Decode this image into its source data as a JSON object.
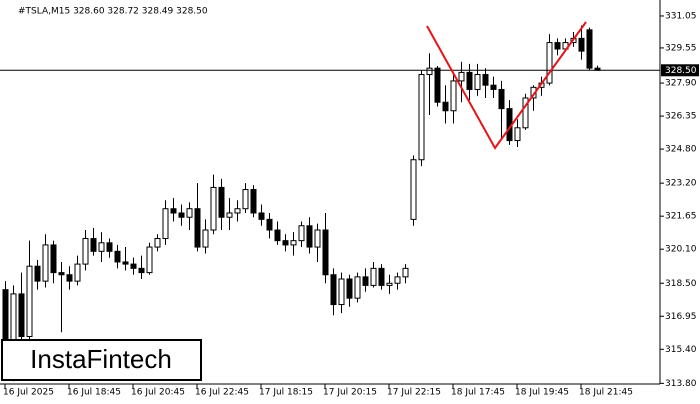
{
  "chart_data": {
    "type": "candlestick",
    "title": "#TSLA,M15  328.60 328.72 328.49 328.50",
    "logo": "InstaFintech",
    "categories": [
      "16 Jul 2025",
      null,
      null,
      null,
      null,
      null,
      null,
      null,
      "16 Jul 18:45",
      null,
      null,
      null,
      null,
      null,
      null,
      null,
      "16 Jul 20:45",
      null,
      null,
      null,
      null,
      null,
      null,
      null,
      "16 Jul 22:45",
      null,
      null,
      null,
      null,
      null,
      null,
      null,
      "17 Jul 18:15",
      null,
      null,
      null,
      null,
      null,
      null,
      null,
      "17 Jul 20:15",
      null,
      null,
      null,
      null,
      null,
      null,
      null,
      "17 Jul 22:15",
      null,
      null,
      null,
      null,
      null,
      null,
      null,
      "18 Jul 17:45",
      null,
      null,
      null,
      null,
      null,
      null,
      null,
      "18 Jul 19:45",
      null,
      null,
      null,
      null,
      null,
      null,
      null,
      "18 Jul 21:45",
      null,
      null
    ],
    "open": [
      318.2,
      315.5,
      318.0,
      316.0,
      319.3,
      318.6,
      320.3,
      319.0,
      318.9,
      318.6,
      319.4,
      320.6,
      320.0,
      320.4,
      320.0,
      319.5,
      319.4,
      319.2,
      319.0,
      320.2,
      320.6,
      322.0,
      321.8,
      321.6,
      322.0,
      320.2,
      321.0,
      323.0,
      321.6,
      321.8,
      322.0,
      322.9,
      321.8,
      321.5,
      321.0,
      320.5,
      320.3,
      320.5,
      321.2,
      320.2,
      321.0,
      318.9,
      317.5,
      318.7,
      317.8,
      318.8,
      318.4,
      319.2,
      318.4,
      318.5,
      318.8,
      321.5,
      324.3,
      328.3,
      328.6,
      327.0,
      326.6,
      328.0,
      328.4,
      327.6,
      328.3,
      327.8,
      327.6,
      326.7,
      325.2,
      325.8,
      327.2,
      327.7,
      327.9,
      329.8,
      329.5,
      329.8,
      330.0,
      330.4,
      328.6
    ],
    "high": [
      318.6,
      318.4,
      319.0,
      320.5,
      319.6,
      320.8,
      320.5,
      319.5,
      319.3,
      319.8,
      321.0,
      321.1,
      320.9,
      320.6,
      320.3,
      320.2,
      319.7,
      319.8,
      320.4,
      320.8,
      322.4,
      322.5,
      322.2,
      322.3,
      323.2,
      321.5,
      323.6,
      323.4,
      322.5,
      322.4,
      323.2,
      323.1,
      322.2,
      321.8,
      321.4,
      320.8,
      320.9,
      321.4,
      321.6,
      321.3,
      321.8,
      319.2,
      319.0,
      318.9,
      319.0,
      319.2,
      319.5,
      319.4,
      318.9,
      319.0,
      319.4,
      324.5,
      328.5,
      329.3,
      328.7,
      327.8,
      328.4,
      328.9,
      328.8,
      328.8,
      328.6,
      328.2,
      328.0,
      327.1,
      326.2,
      327.4,
      327.8,
      328.2,
      330.2,
      330.0,
      330.0,
      330.3,
      330.6,
      330.5,
      328.72
    ],
    "low": [
      314.8,
      313.9,
      315.0,
      315.8,
      318.2,
      318.3,
      318.5,
      316.2,
      318.2,
      318.4,
      319.1,
      319.8,
      319.5,
      319.7,
      319.2,
      319.1,
      318.9,
      318.7,
      318.9,
      320.0,
      320.3,
      321.4,
      321.2,
      321.0,
      320.0,
      319.9,
      320.8,
      321.0,
      321.0,
      321.4,
      321.8,
      321.6,
      321.2,
      320.6,
      320.3,
      320.0,
      319.8,
      320.2,
      319.9,
      319.5,
      318.5,
      317.0,
      317.1,
      317.4,
      317.6,
      318.1,
      318.3,
      318.2,
      318.0,
      318.2,
      318.5,
      321.2,
      324.0,
      326.4,
      326.8,
      326.0,
      326.0,
      327.0,
      327.1,
      327.3,
      327.2,
      327.2,
      325.3,
      325.0,
      324.9,
      325.7,
      326.6,
      327.3,
      327.8,
      329.2,
      329.4,
      329.6,
      329.0,
      328.5,
      328.49
    ],
    "close": [
      315.5,
      318.0,
      316.0,
      319.3,
      318.6,
      320.3,
      319.0,
      318.9,
      318.6,
      319.4,
      320.6,
      320.0,
      320.4,
      320.0,
      319.5,
      319.4,
      319.2,
      319.0,
      320.2,
      320.6,
      322.0,
      321.8,
      321.6,
      322.0,
      320.2,
      321.0,
      323.0,
      321.6,
      321.8,
      322.0,
      322.9,
      321.8,
      321.5,
      321.0,
      320.5,
      320.3,
      320.5,
      321.2,
      320.2,
      321.0,
      318.9,
      317.5,
      318.7,
      317.8,
      318.8,
      318.4,
      319.2,
      318.4,
      318.5,
      318.8,
      319.2,
      324.3,
      328.3,
      328.6,
      327.0,
      326.6,
      328.0,
      328.4,
      327.6,
      328.3,
      327.8,
      327.6,
      326.7,
      325.2,
      325.8,
      327.2,
      327.7,
      327.9,
      329.8,
      329.5,
      329.8,
      330.0,
      329.4,
      328.6,
      328.5
    ],
    "ylim": [
      313.77,
      331.8
    ],
    "yticks": [
      {
        "value": 313.8,
        "label": "313.80"
      },
      {
        "value": 315.4,
        "label": "315.40"
      },
      316.95,
      {
        "value": 318.5,
        "label": "318.50"
      },
      {
        "value": 320.1,
        "label": "320.10"
      },
      321.65,
      {
        "value": 323.2,
        "label": "323.20"
      },
      {
        "value": 324.8,
        "label": "324.80"
      },
      326.35,
      {
        "value": 327.9,
        "label": "327.90"
      },
      329.55,
      331.05
    ],
    "price_line": {
      "value": 328.5,
      "label": "328.50"
    },
    "up_color": "#ffffff",
    "down_color": "#000000",
    "pattern_color": "#e8141a"
  }
}
